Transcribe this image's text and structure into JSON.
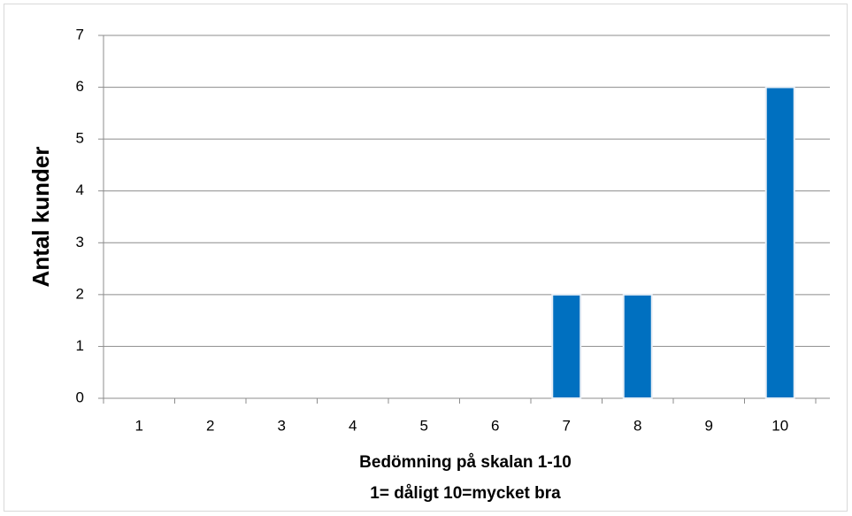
{
  "chart_data": {
    "type": "bar",
    "categories": [
      "1",
      "2",
      "3",
      "4",
      "5",
      "6",
      "7",
      "8",
      "9",
      "10"
    ],
    "values": [
      0,
      0,
      0,
      0,
      0,
      0,
      2,
      2,
      0,
      6
    ],
    "color": "#0070c0",
    "ylim": [
      0,
      7
    ],
    "yticks": [
      0,
      1,
      2,
      3,
      4,
      5,
      6,
      7
    ],
    "grid": true,
    "ylabel": "Antal kunder",
    "xlabel": [
      "Bedömning på skalan 1-10",
      "1= dåligt   10=mycket bra"
    ]
  }
}
